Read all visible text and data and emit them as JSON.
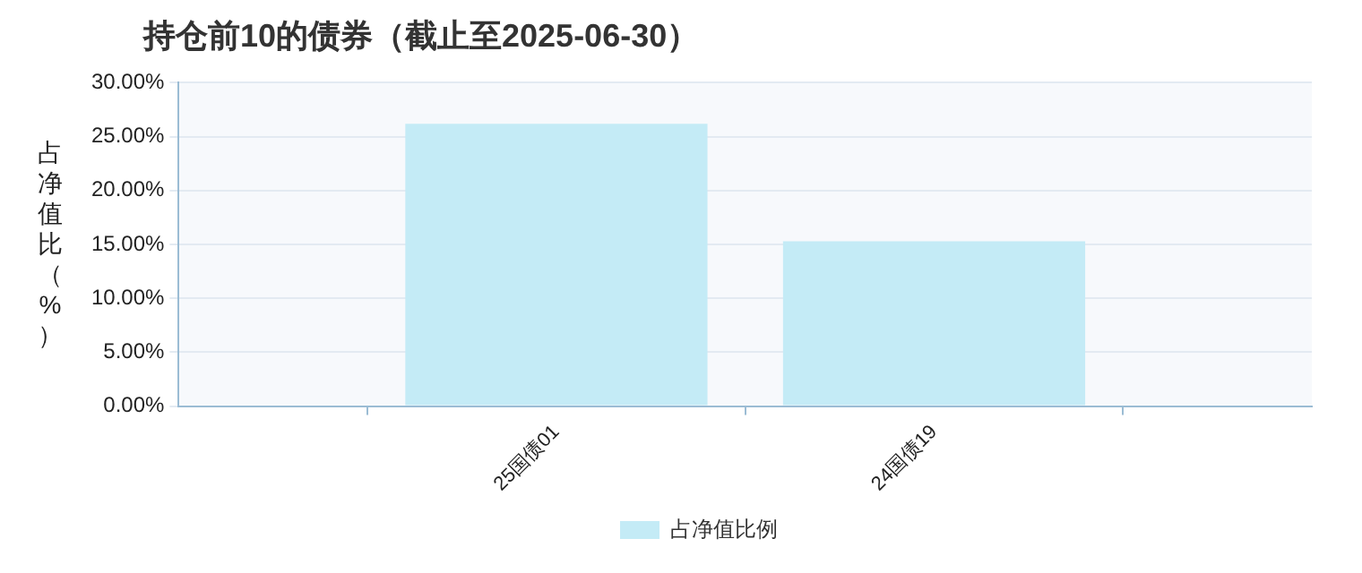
{
  "chart_data": {
    "type": "bar",
    "title": "持仓前10的债券（截止至2025-06-30）",
    "ylabel": "占净值比（%）",
    "categories": [
      null,
      "25国债01",
      "24国债19",
      null
    ],
    "series": [
      {
        "name": "占净值比例",
        "color": "#c4ebf6",
        "values": [
          null,
          26.2,
          15.3,
          null
        ]
      }
    ],
    "ylim": [
      0,
      30
    ],
    "yticks": [
      {
        "value": 0,
        "label": "0.00%"
      },
      {
        "value": 5,
        "label": "5.00%"
      },
      {
        "value": 10,
        "label": "10.00%"
      },
      {
        "value": 15,
        "label": "15.00%"
      },
      {
        "value": 20,
        "label": "20.00%"
      },
      {
        "value": 25,
        "label": "25.00%"
      },
      {
        "value": 30,
        "label": "30.00%"
      }
    ],
    "grid": "y",
    "legend": "bottom"
  }
}
